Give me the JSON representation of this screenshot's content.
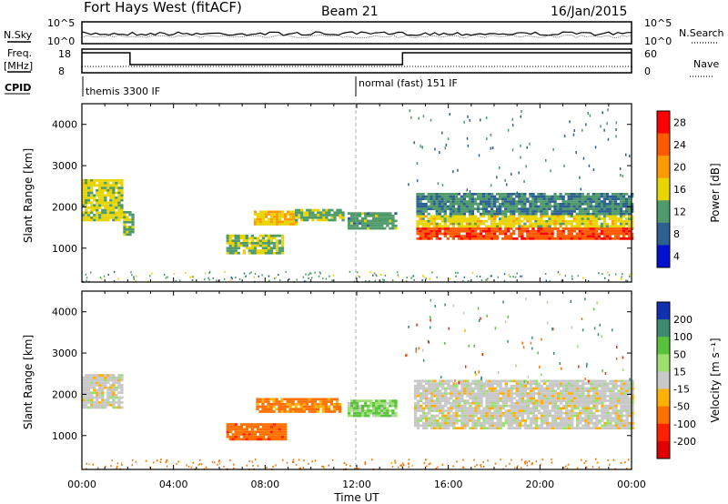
{
  "header": {
    "station": "Fort Hays West (fitACF)",
    "beam": "Beam 21",
    "date": "16/Jan/2015"
  },
  "status_panels": {
    "nsky_label": "N.Sky",
    "noise_ticks": [
      "10^5",
      "10^0"
    ],
    "nsearch_label": "N.Search",
    "freq_label_1": "Freq.",
    "freq_label_2": "[MHz]",
    "freq_ticks": [
      "18",
      "8"
    ],
    "nave_ticks": [
      "60",
      "0"
    ],
    "nave_label": "Nave",
    "cpid_label": "CPID",
    "cpid_modes": [
      {
        "name": "themis 3300 IF",
        "start_hour": 0
      },
      {
        "name": "normal (fast) 151 IF",
        "start_hour": 12
      }
    ]
  },
  "chart_data": [
    {
      "type": "heatmap",
      "name": "power",
      "ylabel": "Slant Range [km]",
      "xlabel": "",
      "ylim": [
        180,
        4500
      ],
      "xlim_hours": [
        0,
        24
      ],
      "yticks": [
        1000,
        2000,
        3000,
        4000
      ],
      "colorbar": {
        "label": "Power [dB]",
        "ticks": [
          "28",
          "24",
          "20",
          "16",
          "12",
          "8",
          "4"
        ],
        "colors": [
          "#ff0000",
          "#ff5a00",
          "#ff9a00",
          "#e8d400",
          "#4e9a6a",
          "#2c6090",
          "#0010d0"
        ],
        "range": [
          0,
          30
        ]
      },
      "regions": [
        {
          "t": [
            0.0,
            1.7
          ],
          "r": [
            1650,
            2650
          ],
          "level": 14
        },
        {
          "t": [
            1.8,
            2.2
          ],
          "r": [
            1300,
            1900
          ],
          "level": 11
        },
        {
          "t": [
            6.3,
            8.7
          ],
          "r": [
            850,
            1300
          ],
          "level": 12
        },
        {
          "t": [
            7.5,
            9.4
          ],
          "r": [
            1550,
            1900
          ],
          "level": 17
        },
        {
          "t": [
            9.3,
            11.4
          ],
          "r": [
            1650,
            1950
          ],
          "level": 11
        },
        {
          "t": [
            11.6,
            13.7
          ],
          "r": [
            1450,
            1850
          ],
          "level": 10
        },
        {
          "t": [
            14.6,
            24.0
          ],
          "r": [
            1200,
            1500
          ],
          "level": 26
        },
        {
          "t": [
            14.6,
            24.0
          ],
          "r": [
            1500,
            1800
          ],
          "level": 15
        },
        {
          "t": [
            14.6,
            24.0
          ],
          "r": [
            1800,
            2300
          ],
          "level": 8
        }
      ]
    },
    {
      "type": "heatmap",
      "name": "velocity",
      "ylabel": "Slant Range [km]",
      "xlabel": "Time UT",
      "ylim": [
        180,
        4500
      ],
      "xlim_hours": [
        0,
        24
      ],
      "yticks": [
        1000,
        2000,
        3000,
        4000
      ],
      "xticks": [
        "00:00",
        "04:00",
        "08:00",
        "12:00",
        "16:00",
        "20:00",
        "00:00"
      ],
      "colorbar": {
        "label": "Velocity [m s⁻¹]",
        "ticks": [
          "200",
          "100",
          "50",
          "15",
          "-15",
          "-50",
          "-100",
          "-200"
        ],
        "colors": [
          "#1030b0",
          "#3c8a70",
          "#58c23c",
          "#9be070",
          "#c8c8c8",
          "#ffb000",
          "#ff7000",
          "#ff2000",
          "#e00000"
        ]
      },
      "regions": [
        {
          "t": [
            0.0,
            1.7
          ],
          "r": [
            1650,
            2450
          ],
          "velocity": 0
        },
        {
          "t": [
            6.3,
            8.9
          ],
          "r": [
            880,
            1300
          ],
          "velocity": -60
        },
        {
          "t": [
            7.6,
            11.3
          ],
          "r": [
            1550,
            1900
          ],
          "velocity": -40
        },
        {
          "t": [
            11.6,
            13.7
          ],
          "r": [
            1450,
            1850
          ],
          "velocity": 30
        },
        {
          "t": [
            14.5,
            24.0
          ],
          "r": [
            1150,
            2350
          ],
          "velocity": 0
        }
      ]
    }
  ]
}
